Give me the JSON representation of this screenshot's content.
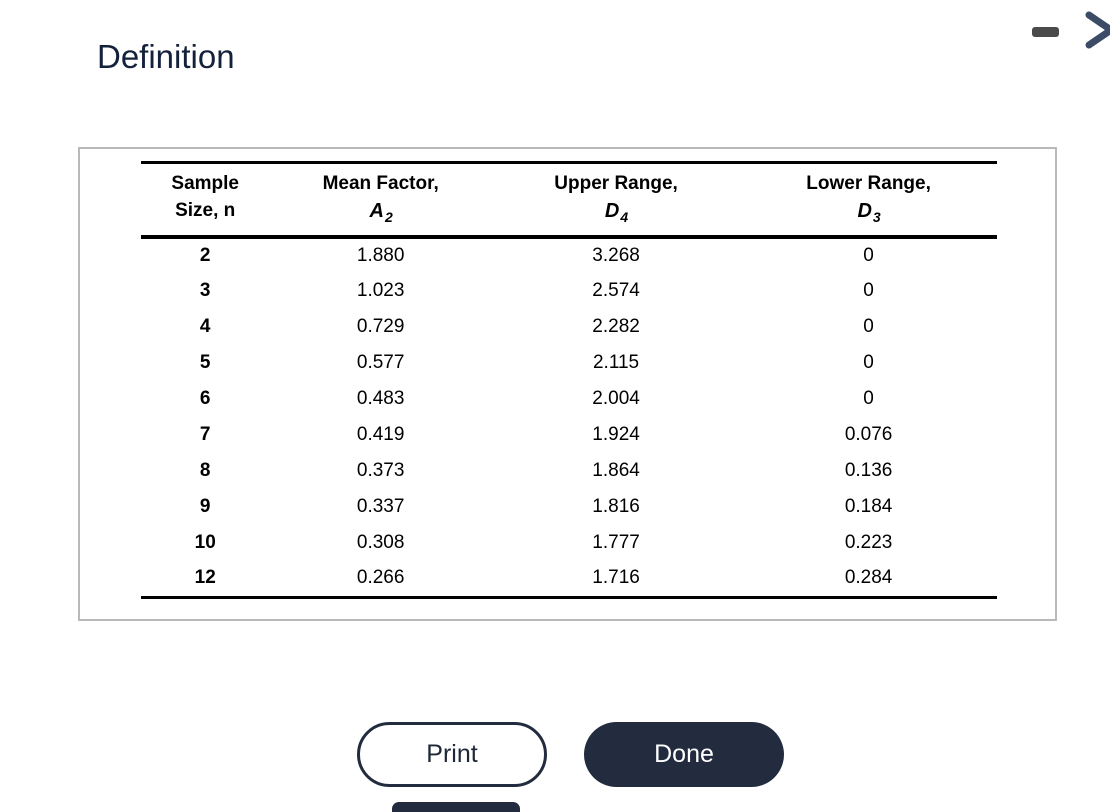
{
  "header": {
    "title": "Definition"
  },
  "window_controls": {
    "minimize": "minimize",
    "expand": "expand"
  },
  "table": {
    "headers": [
      {
        "line1": "Sample",
        "line2": "Size, n",
        "symbol": "",
        "subscript": ""
      },
      {
        "line1": "Mean Factor,",
        "line2": "",
        "symbol": "A",
        "subscript": "2"
      },
      {
        "line1": "Upper Range,",
        "line2": "",
        "symbol": "D",
        "subscript": "4"
      },
      {
        "line1": "Lower Range,",
        "line2": "",
        "symbol": "D",
        "subscript": "3"
      }
    ],
    "rows": [
      [
        "2",
        "1.880",
        "3.268",
        "0"
      ],
      [
        "3",
        "1.023",
        "2.574",
        "0"
      ],
      [
        "4",
        "0.729",
        "2.282",
        "0"
      ],
      [
        "5",
        "0.577",
        "2.115",
        "0"
      ],
      [
        "6",
        "0.483",
        "2.004",
        "0"
      ],
      [
        "7",
        "0.419",
        "1.924",
        "0.076"
      ],
      [
        "8",
        "0.373",
        "1.864",
        "0.136"
      ],
      [
        "9",
        "0.337",
        "1.816",
        "0.184"
      ],
      [
        "10",
        "0.308",
        "1.777",
        "0.223"
      ],
      [
        "12",
        "0.266",
        "1.716",
        "0.284"
      ]
    ]
  },
  "buttons": {
    "print": "Print",
    "done": "Done"
  },
  "colors": {
    "navy": "#222c3e",
    "title_navy": "#13213a",
    "minimize_gray": "#4a4a4a",
    "chevron_navy": "#3d4c66",
    "panel_border": "#b9b9b9"
  }
}
